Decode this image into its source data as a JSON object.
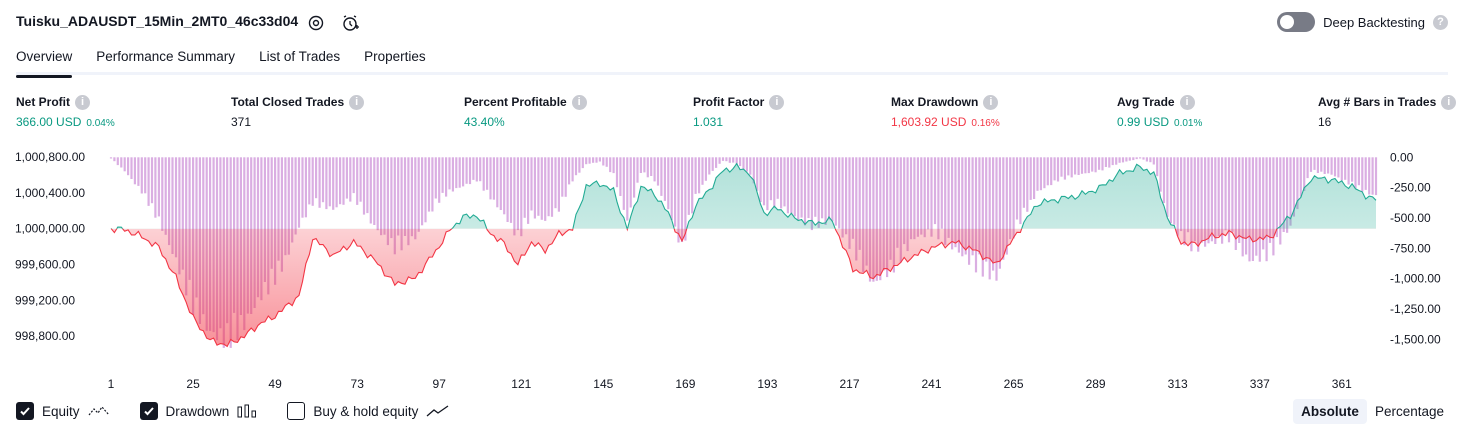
{
  "header": {
    "title": "Tuisku_ADAUSDT_15Min_2MT0_46c33d04",
    "deep_backtesting_label": "Deep Backtesting"
  },
  "tabs": [
    {
      "label": "Overview"
    },
    {
      "label": "Performance Summary"
    },
    {
      "label": "List of Trades"
    },
    {
      "label": "Properties"
    }
  ],
  "metrics": {
    "net_profit": {
      "label": "Net Profit",
      "value": "366.00 USD",
      "pct": "0.04%"
    },
    "total_closed_trades": {
      "label": "Total Closed Trades",
      "value": "371"
    },
    "percent_profitable": {
      "label": "Percent Profitable",
      "value": "43.40%"
    },
    "profit_factor": {
      "label": "Profit Factor",
      "value": "1.031"
    },
    "max_drawdown": {
      "label": "Max Drawdown",
      "value": "1,603.92 USD",
      "pct": "0.16%"
    },
    "avg_trade": {
      "label": "Avg Trade",
      "value": "0.99 USD",
      "pct": "0.01%"
    },
    "avg_bars": {
      "label": "Avg # Bars in Trades",
      "value": "16"
    }
  },
  "colors": {
    "profit": "#089981",
    "loss": "#f23645",
    "equity_line_up": "#22ab94",
    "drawdown_bars": "#ce93d8"
  },
  "chart_data": {
    "type": "line",
    "x_ticks": [
      "1",
      "25",
      "49",
      "73",
      "97",
      "121",
      "145",
      "169",
      "193",
      "217",
      "241",
      "265",
      "289",
      "313",
      "337",
      "361"
    ],
    "y_left_ticks": [
      "1,000,800.00",
      "1,000,400.00",
      "1,000,000.00",
      "999,600.00",
      "999,200.00",
      "998,800.00"
    ],
    "y_right_ticks": [
      "0.00",
      "-250.00",
      "-500.00",
      "-750.00",
      "-1,000.00",
      "-1,250.00",
      "-1,500.00"
    ],
    "ylim_left": [
      998600,
      1000880
    ],
    "ylim_right": [
      -1620,
      60
    ],
    "baseline": 1000000,
    "series": [
      {
        "name": "Equity",
        "x": [
          1,
          5,
          10,
          15,
          20,
          25,
          30,
          35,
          40,
          45,
          48,
          52,
          56,
          60,
          66,
          72,
          78,
          84,
          90,
          96,
          100,
          104,
          108,
          112,
          116,
          120,
          124,
          128,
          132,
          136,
          140,
          144,
          148,
          152,
          156,
          160,
          164,
          168,
          172,
          176,
          180,
          184,
          188,
          192,
          196,
          200,
          206,
          212,
          218,
          224,
          230,
          236,
          242,
          248,
          254,
          260,
          266,
          272,
          278,
          284,
          290,
          296,
          302,
          306,
          310,
          314,
          318,
          322,
          328,
          334,
          340,
          346,
          352,
          358,
          364,
          370
        ],
        "values": [
          1000000,
          999990,
          999910,
          999790,
          999450,
          999000,
          998750,
          998700,
          998800,
          998950,
          999000,
          999120,
          999250,
          999900,
          999700,
          999850,
          999650,
          999380,
          999450,
          999750,
          999980,
          1000130,
          1000150,
          999950,
          999830,
          999600,
          999850,
          999760,
          999940,
          1000000,
          1000480,
          1000510,
          1000420,
          1000000,
          1000470,
          1000390,
          1000170,
          999850,
          1000260,
          1000440,
          1000650,
          1000690,
          1000620,
          1000170,
          1000230,
          1000130,
          1000060,
          1000090,
          999550,
          999460,
          999580,
          999700,
          999800,
          999850,
          999750,
          999600,
          999950,
          1000280,
          1000330,
          1000370,
          1000450,
          1000620,
          1000690,
          1000620,
          1000130,
          999850,
          999820,
          999900,
          999950,
          999880,
          999900,
          1000150,
          1000570,
          1000550,
          1000470,
          1000330
        ]
      },
      {
        "name": "Drawdown",
        "x": [
          1,
          5,
          10,
          15,
          20,
          25,
          30,
          35,
          40,
          45,
          48,
          52,
          56,
          60,
          66,
          72,
          78,
          84,
          90,
          96,
          100,
          104,
          108,
          112,
          116,
          120,
          124,
          128,
          132,
          136,
          140,
          144,
          148,
          152,
          156,
          160,
          164,
          168,
          172,
          176,
          180,
          184,
          188,
          192,
          196,
          200,
          206,
          212,
          218,
          224,
          230,
          236,
          242,
          248,
          254,
          260,
          266,
          272,
          278,
          284,
          290,
          296,
          302,
          306,
          310,
          314,
          318,
          322,
          328,
          334,
          340,
          346,
          352,
          358,
          364,
          370
        ],
        "values": [
          -10,
          -120,
          -300,
          -550,
          -900,
          -1300,
          -1520,
          -1600,
          -1450,
          -1200,
          -1100,
          -900,
          -600,
          -400,
          -450,
          -350,
          -600,
          -800,
          -700,
          -400,
          -300,
          -250,
          -200,
          -350,
          -500,
          -700,
          -500,
          -550,
          -450,
          -200,
          -60,
          -40,
          -150,
          -550,
          -130,
          -200,
          -450,
          -800,
          -350,
          -150,
          -30,
          -60,
          -150,
          -450,
          -400,
          -500,
          -600,
          -550,
          -800,
          -1100,
          -950,
          -700,
          -650,
          -800,
          -950,
          -1050,
          -600,
          -300,
          -200,
          -150,
          -120,
          -50,
          -10,
          -60,
          -520,
          -700,
          -800,
          -750,
          -700,
          -900,
          -850,
          -600,
          -120,
          -150,
          -240,
          -330
        ]
      }
    ],
    "legend": [
      "Equity",
      "Drawdown",
      "Buy & hold equity"
    ]
  },
  "legend": {
    "equity_label": "Equity",
    "drawdown_label": "Drawdown",
    "buyhold_label": "Buy & hold equity"
  },
  "view_toggle": {
    "absolute_label": "Absolute",
    "percentage_label": "Percentage"
  }
}
